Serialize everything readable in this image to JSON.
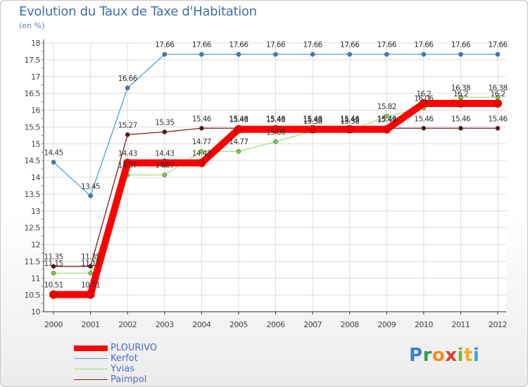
{
  "chart_data": {
    "type": "line",
    "title": "Evolution du Taux de Taxe d'Habitation",
    "subtitle": "(en %)",
    "categories": [
      "2000",
      "2001",
      "2002",
      "2003",
      "2004",
      "2005",
      "2006",
      "2007",
      "2008",
      "2009",
      "2010",
      "2011",
      "2012"
    ],
    "ylim": [
      10,
      18
    ],
    "yticks": [
      "10",
      "10.5",
      "11",
      "11.5",
      "12",
      "12.5",
      "13",
      "13.5",
      "14",
      "14.5",
      "15",
      "15.5",
      "16",
      "16.5",
      "17",
      "17.5",
      "18"
    ],
    "grid": true,
    "legend_position": "bottom-left",
    "series": [
      {
        "name": "Paimpol",
        "color": "#7a1e1e",
        "point_color": "#5a0f0f",
        "style": "thin",
        "values": [
          11.35,
          11.35,
          15.27,
          15.35,
          15.46,
          15.46,
          15.46,
          15.46,
          15.46,
          15.46,
          15.46,
          15.46,
          15.46
        ],
        "labels": [
          "11.35",
          "11.35",
          "15.27",
          "15.35",
          "15.46",
          "15.46",
          "15.46",
          "15.46",
          "15.46",
          "15.46",
          "15.46",
          "15.46",
          "15.46"
        ]
      },
      {
        "name": "Yvias",
        "color": "#9ee07a",
        "point_color": "#7ac943",
        "style": "thin",
        "values": [
          11.15,
          11.15,
          14.07,
          14.07,
          14.77,
          14.77,
          15.06,
          15.38,
          15.38,
          15.82,
          16.06,
          16.38,
          16.38
        ],
        "labels": [
          "11.15",
          "11.15",
          "14.07",
          "14.07",
          "14.77",
          "14.77",
          "15.06",
          "15.38",
          "15.38",
          "15.82",
          "16.06",
          "16.38",
          "16.38"
        ]
      },
      {
        "name": "Kerfot",
        "color": "#5b9bd5",
        "point_color": "#3a7fc4",
        "style": "thin",
        "values": [
          14.45,
          13.45,
          16.66,
          17.66,
          17.66,
          17.66,
          17.66,
          17.66,
          17.66,
          17.66,
          17.66,
          17.66,
          17.66
        ],
        "labels": [
          "14.45",
          "13.45",
          "16.66",
          "17.66",
          "17.66",
          "17.66",
          "17.66",
          "17.66",
          "17.66",
          "17.66",
          "17.66",
          "17.66",
          "17.66"
        ]
      },
      {
        "name": "PLOURIVO",
        "color": "#ff0000",
        "point_color": "#e60000",
        "style": "thick",
        "values": [
          10.51,
          10.51,
          14.43,
          14.43,
          14.43,
          15.43,
          15.43,
          15.43,
          15.43,
          15.43,
          16.2,
          16.2,
          16.2
        ],
        "labels": [
          "10.51",
          "10.51",
          "14.43",
          "14.43",
          "14.43",
          "15.43",
          "15.43",
          "15.43",
          "15.43",
          "15.43",
          "16.2",
          "16.2",
          "16.2"
        ]
      }
    ],
    "legend": [
      "PLOURIVO",
      "Kerfot",
      "Yvias",
      "Paimpol"
    ]
  },
  "logo": {
    "letters": [
      "P",
      "r",
      "o",
      "x",
      "i",
      "t",
      "i"
    ],
    "colors": [
      "#3a7fd5",
      "#2e9e4f",
      "#f28c1e",
      "#e23a2e",
      "#6cbf3c",
      "#f2b21e",
      "#3a9ee0"
    ]
  }
}
